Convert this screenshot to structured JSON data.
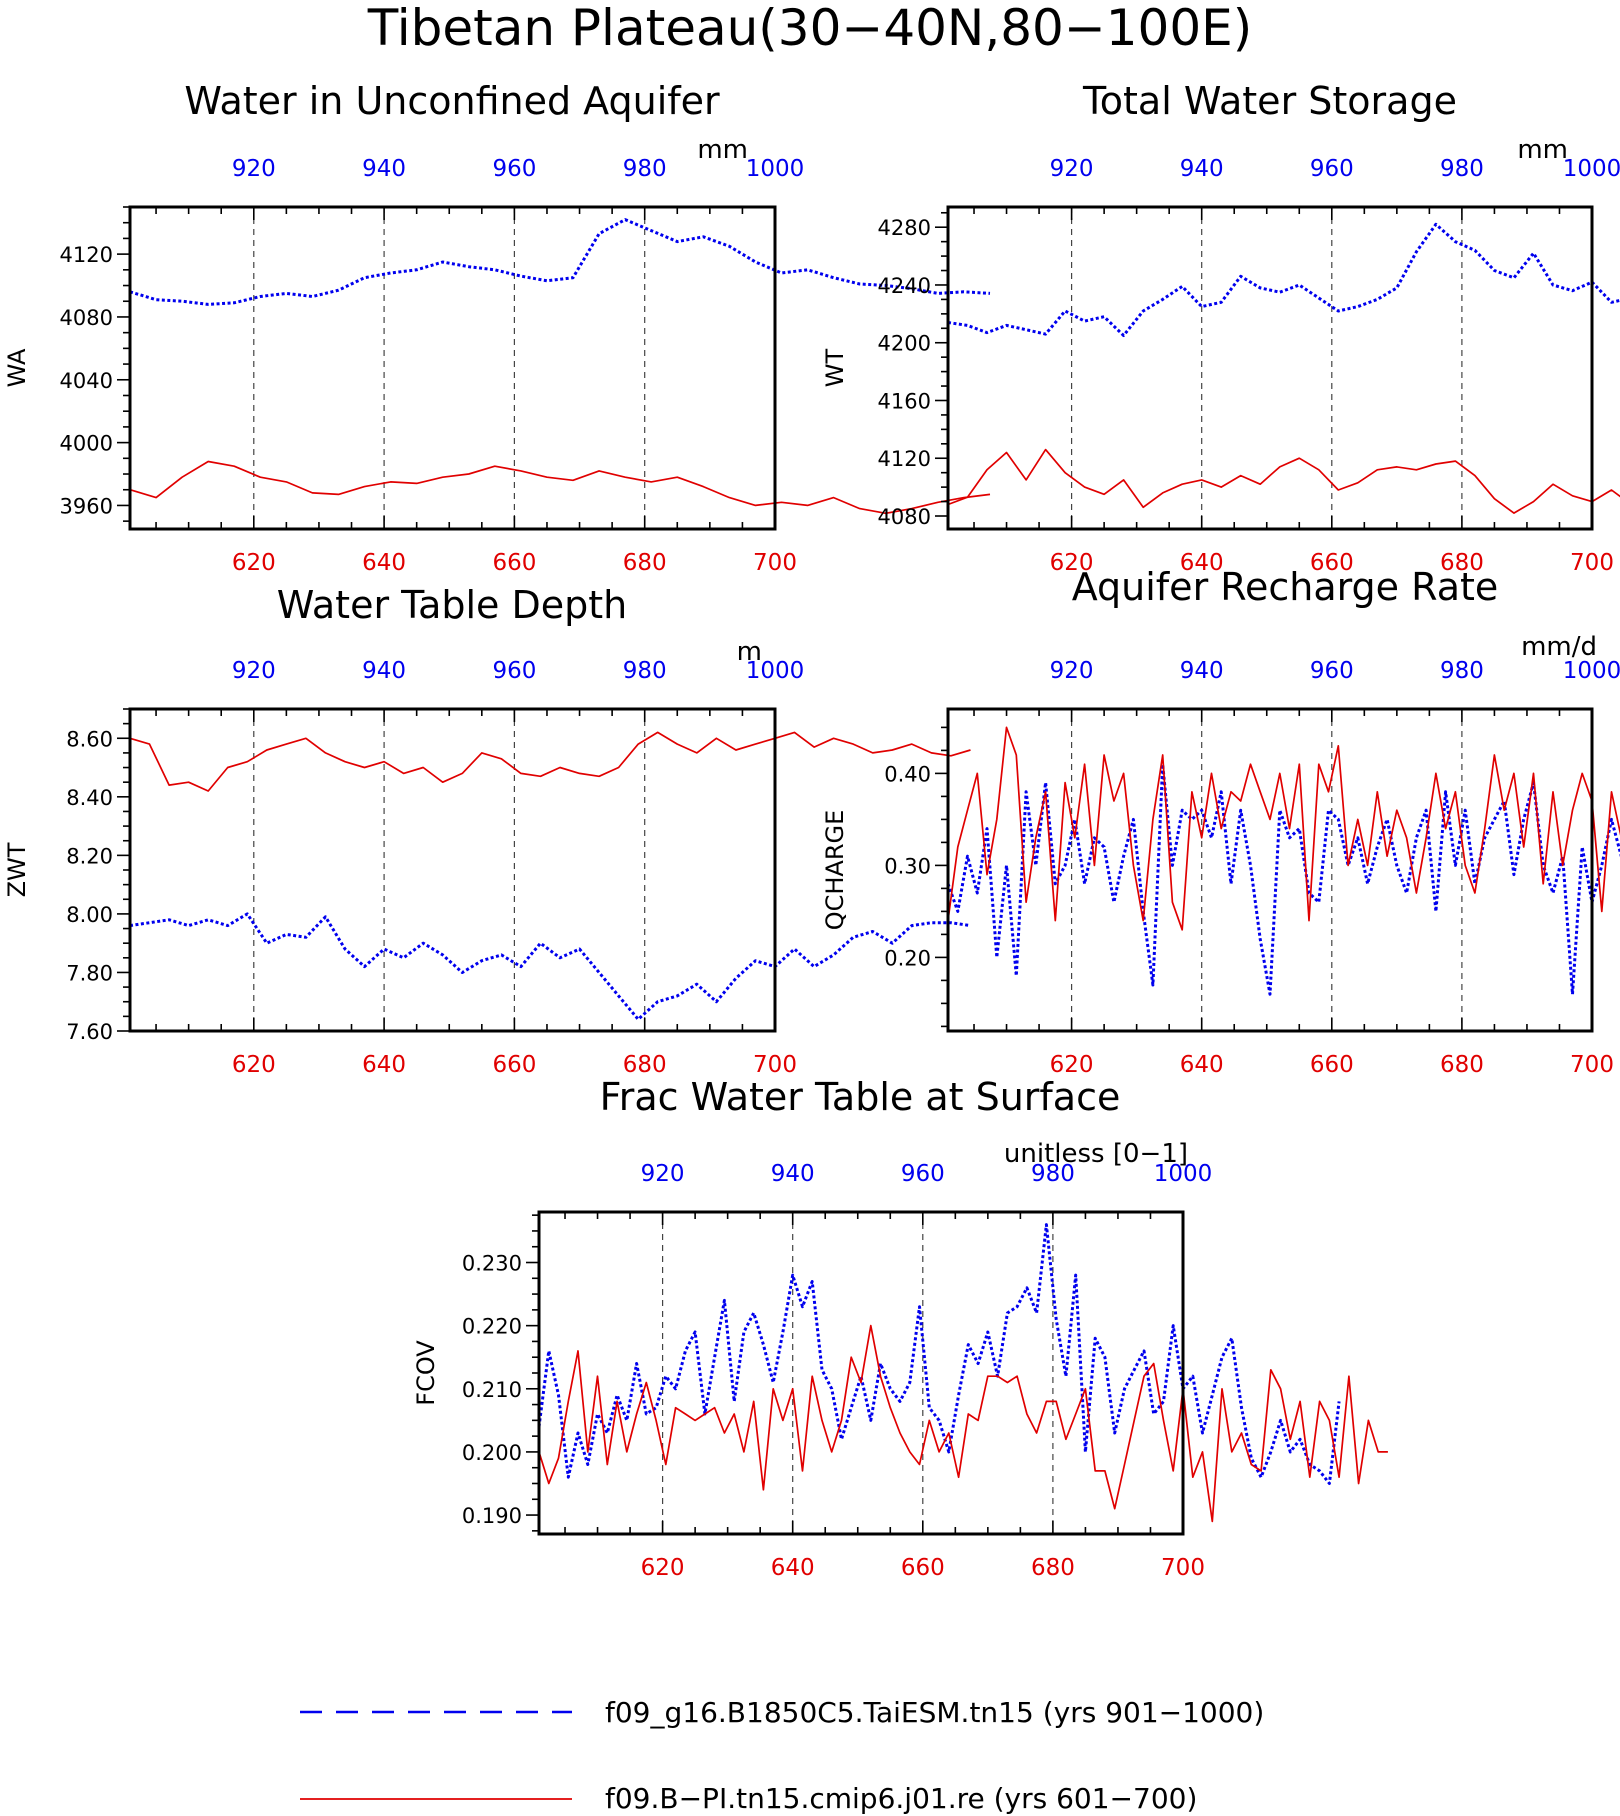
{
  "figure": {
    "title": "Tibetan Plateau(30−40N,80−100E)",
    "colors": {
      "series_a": "#0000ee",
      "series_b": "#e00000"
    },
    "legend": [
      {
        "name": "f09_g16.B1850C5.TaiESM.tn15 (yrs 901−1000)",
        "style": "dashed",
        "color": "#0000ee"
      },
      {
        "name": "f09.B−PI.tn15.cmip6.j01.re (yrs 601−700)",
        "style": "solid",
        "color": "#e00000"
      }
    ]
  },
  "chart_data": [
    {
      "type": "line",
      "title": "Water in Unconfined Aquifer",
      "units": "mm",
      "ylabel": "WA",
      "ylim": [
        3945,
        4150
      ],
      "yticks": [
        3960,
        4000,
        4040,
        4080,
        4120
      ],
      "ytick_labels": [
        "3960",
        "4000",
        "4040",
        "4080",
        "4120"
      ],
      "xlim_bottom": [
        601,
        700
      ],
      "xticks_bottom": [
        620,
        640,
        660,
        680,
        700
      ],
      "xlim_top": [
        901,
        1000
      ],
      "xticks_top": [
        920,
        940,
        960,
        980,
        1000
      ],
      "grid": "vertical dashed",
      "series": [
        {
          "name": "f09_g16.B1850C5.TaiESM.tn15 (yrs 901−1000)",
          "axis": "top",
          "style": "dashed",
          "x_start": 901,
          "x_step": 4,
          "values": [
            4096,
            4091,
            4090,
            4088,
            4089,
            4093,
            4095,
            4093,
            4097,
            4105,
            4108,
            4110,
            4115,
            4112,
            4110,
            4106,
            4103,
            4105,
            4133,
            4142,
            4135,
            4128,
            4131,
            4125,
            4115,
            4108,
            4110,
            4105,
            4101,
            4100,
            4098,
            4095,
            4096,
            4095
          ]
        },
        {
          "name": "f09.B−PI.tn15.cmip6.j01.re (yrs 601−700)",
          "axis": "bottom",
          "style": "solid",
          "x_start": 601,
          "x_step": 4,
          "values": [
            3970,
            3965,
            3978,
            3988,
            3985,
            3978,
            3975,
            3968,
            3967,
            3972,
            3975,
            3974,
            3978,
            3980,
            3985,
            3982,
            3978,
            3976,
            3982,
            3978,
            3975,
            3978,
            3972,
            3965,
            3960,
            3962,
            3960,
            3965,
            3958,
            3955,
            3958,
            3962,
            3965,
            3967
          ]
        }
      ]
    },
    {
      "type": "line",
      "title": "Total Water Storage",
      "units": "mm",
      "ylabel": "WT",
      "ylim": [
        4071,
        4294
      ],
      "yticks": [
        4080,
        4120,
        4160,
        4200,
        4240,
        4280
      ],
      "ytick_labels": [
        "4080",
        "4120",
        "4160",
        "4200",
        "4240",
        "4280"
      ],
      "xlim_bottom": [
        601,
        700
      ],
      "xticks_bottom": [
        620,
        640,
        660,
        680,
        700
      ],
      "xlim_top": [
        901,
        1000
      ],
      "xticks_top": [
        920,
        940,
        960,
        980,
        1000
      ],
      "grid": "vertical dashed",
      "series": [
        {
          "name": "f09_g16.B1850C5.TaiESM.tn15 (yrs 901−1000)",
          "axis": "top",
          "style": "dashed",
          "x_start": 901,
          "x_step": 3,
          "values": [
            4214,
            4212,
            4207,
            4212,
            4209,
            4206,
            4222,
            4215,
            4218,
            4205,
            4222,
            4230,
            4239,
            4225,
            4228,
            4246,
            4238,
            4235,
            4240,
            4231,
            4222,
            4225,
            4230,
            4238,
            4263,
            4282,
            4270,
            4264,
            4250,
            4245,
            4262,
            4240,
            4236,
            4242,
            4228,
            4231,
            4224,
            4212,
            4220,
            4215,
            4219,
            4210,
            4213,
            4208
          ]
        },
        {
          "name": "f09.B−PI.tn15.cmip6.j01.re (yrs 601−700)",
          "axis": "bottom",
          "style": "solid",
          "x_start": 601,
          "x_step": 3,
          "values": [
            4088,
            4093,
            4112,
            4124,
            4105,
            4126,
            4110,
            4100,
            4095,
            4105,
            4086,
            4096,
            4102,
            4105,
            4100,
            4108,
            4102,
            4114,
            4120,
            4112,
            4098,
            4103,
            4112,
            4114,
            4112,
            4116,
            4118,
            4108,
            4092,
            4082,
            4090,
            4102,
            4094,
            4090,
            4098,
            4088,
            4082,
            4092,
            4086,
            4098,
            4090,
            4102,
            4098,
            4093
          ]
        }
      ]
    },
    {
      "type": "line",
      "title": "Water Table Depth",
      "units": "m",
      "ylabel": "ZWT",
      "ylim": [
        7.6,
        8.7
      ],
      "yticks": [
        7.6,
        7.8,
        8.0,
        8.2,
        8.4,
        8.6
      ],
      "ytick_labels": [
        "7.60",
        "7.80",
        "8.00",
        "8.20",
        "8.40",
        "8.60"
      ],
      "xlim_bottom": [
        601,
        700
      ],
      "xticks_bottom": [
        620,
        640,
        660,
        680,
        700
      ],
      "xlim_top": [
        901,
        1000
      ],
      "xticks_top": [
        920,
        940,
        960,
        980,
        1000
      ],
      "grid": "vertical dashed",
      "series": [
        {
          "name": "f09_g16.B1850C5.TaiESM.tn15 (yrs 901−1000)",
          "axis": "top",
          "style": "dashed",
          "x_start": 901,
          "x_step": 3,
          "values": [
            7.96,
            7.97,
            7.98,
            7.96,
            7.98,
            7.96,
            8.0,
            7.9,
            7.93,
            7.92,
            7.99,
            7.88,
            7.82,
            7.88,
            7.85,
            7.9,
            7.86,
            7.8,
            7.84,
            7.86,
            7.82,
            7.9,
            7.85,
            7.88,
            7.8,
            7.72,
            7.64,
            7.7,
            7.72,
            7.76,
            7.7,
            7.78,
            7.84,
            7.82,
            7.88,
            7.82,
            7.86,
            7.92,
            7.94,
            7.9,
            7.96,
            7.97,
            7.97,
            7.96
          ]
        },
        {
          "name": "f09.B−PI.tn15.cmip6.j01.re (yrs 601−700)",
          "axis": "bottom",
          "style": "solid",
          "x_start": 601,
          "x_step": 3,
          "values": [
            8.6,
            8.58,
            8.44,
            8.45,
            8.42,
            8.5,
            8.52,
            8.56,
            8.58,
            8.6,
            8.55,
            8.52,
            8.5,
            8.52,
            8.48,
            8.5,
            8.45,
            8.48,
            8.55,
            8.53,
            8.48,
            8.47,
            8.5,
            8.48,
            8.47,
            8.5,
            8.58,
            8.62,
            8.58,
            8.55,
            8.6,
            8.56,
            8.58,
            8.6,
            8.62,
            8.57,
            8.6,
            8.58,
            8.55,
            8.56,
            8.58,
            8.55,
            8.54,
            8.56
          ]
        }
      ]
    },
    {
      "type": "line",
      "title": "Aquifer Recharge Rate",
      "units": "mm/d",
      "ylabel": "QCHARGE",
      "ylim": [
        0.12,
        0.47
      ],
      "yticks": [
        0.2,
        0.3,
        0.4
      ],
      "ytick_labels": [
        "0.20",
        "0.30",
        "0.40"
      ],
      "xlim_bottom": [
        601,
        700
      ],
      "xticks_bottom": [
        620,
        640,
        660,
        680,
        700
      ],
      "xlim_top": [
        901,
        1000
      ],
      "xticks_top": [
        920,
        940,
        960,
        980,
        1000
      ],
      "grid": "vertical dashed",
      "series": [
        {
          "name": "f09_g16.B1850C5.TaiESM.tn15 (yrs 901−1000)",
          "axis": "top",
          "style": "dashed",
          "x_start": 901,
          "x_step": 1.5,
          "values": [
            0.28,
            0.25,
            0.31,
            0.27,
            0.34,
            0.2,
            0.3,
            0.18,
            0.38,
            0.3,
            0.39,
            0.28,
            0.3,
            0.35,
            0.28,
            0.33,
            0.32,
            0.26,
            0.31,
            0.35,
            0.25,
            0.17,
            0.41,
            0.3,
            0.36,
            0.35,
            0.36,
            0.33,
            0.38,
            0.28,
            0.36,
            0.3,
            0.22,
            0.16,
            0.36,
            0.33,
            0.34,
            0.27,
            0.26,
            0.36,
            0.35,
            0.3,
            0.33,
            0.28,
            0.32,
            0.35,
            0.3,
            0.27,
            0.33,
            0.36,
            0.25,
            0.38,
            0.3,
            0.36,
            0.28,
            0.33,
            0.35,
            0.37,
            0.29,
            0.35,
            0.39,
            0.3,
            0.27,
            0.31,
            0.16,
            0.32,
            0.26,
            0.3,
            0.35,
            0.31,
            0.34,
            0.37,
            0.28,
            0.36,
            0.22,
            0.19,
            0.3,
            0.33,
            0.26,
            0.36,
            0.3,
            0.13,
            0.3,
            0.27,
            0.31,
            0.24,
            0.19,
            0.28,
            0.32,
            0.16,
            0.33,
            0.27,
            0.34,
            0.26
          ]
        },
        {
          "name": "f09.B−PI.tn15.cmip6.j01.re (yrs 601−700)",
          "axis": "bottom",
          "style": "solid",
          "x_start": 601,
          "x_step": 1.5,
          "values": [
            0.24,
            0.32,
            0.36,
            0.4,
            0.29,
            0.35,
            0.45,
            0.42,
            0.26,
            0.33,
            0.38,
            0.24,
            0.39,
            0.33,
            0.41,
            0.3,
            0.42,
            0.37,
            0.4,
            0.3,
            0.24,
            0.35,
            0.42,
            0.26,
            0.23,
            0.38,
            0.33,
            0.4,
            0.34,
            0.38,
            0.37,
            0.41,
            0.38,
            0.35,
            0.4,
            0.34,
            0.41,
            0.24,
            0.41,
            0.38,
            0.43,
            0.3,
            0.35,
            0.3,
            0.38,
            0.31,
            0.36,
            0.33,
            0.27,
            0.33,
            0.4,
            0.34,
            0.38,
            0.3,
            0.27,
            0.34,
            0.42,
            0.36,
            0.4,
            0.32,
            0.4,
            0.28,
            0.38,
            0.3,
            0.36,
            0.4,
            0.37,
            0.25,
            0.38,
            0.33,
            0.29,
            0.42,
            0.31,
            0.45,
            0.33,
            0.37,
            0.3,
            0.4,
            0.34,
            0.38,
            0.31,
            0.37,
            0.3,
            0.4,
            0.35,
            0.39,
            0.32,
            0.4,
            0.3,
            0.38,
            0.31,
            0.36,
            0.3,
            0.34
          ]
        }
      ]
    },
    {
      "type": "line",
      "title": "Frac Water Table at Surface",
      "units": "unitless [0−1]",
      "ylabel": "FCOV",
      "ylim": [
        0.187,
        0.238
      ],
      "yticks": [
        0.19,
        0.2,
        0.21,
        0.22,
        0.23
      ],
      "ytick_labels": [
        "0.190",
        "0.200",
        "0.210",
        "0.220",
        "0.230"
      ],
      "xlim_bottom": [
        601,
        700
      ],
      "xticks_bottom": [
        620,
        640,
        660,
        680,
        700
      ],
      "xlim_top": [
        901,
        1000
      ],
      "xticks_top": [
        920,
        940,
        960,
        980,
        1000
      ],
      "grid": "vertical dashed",
      "series": [
        {
          "name": "f09_g16.B1850C5.TaiESM.tn15 (yrs 901−1000)",
          "axis": "top",
          "style": "dashed",
          "x_start": 901,
          "x_step": 1.5,
          "values": [
            0.204,
            0.216,
            0.209,
            0.196,
            0.203,
            0.198,
            0.206,
            0.203,
            0.209,
            0.205,
            0.214,
            0.206,
            0.207,
            0.212,
            0.21,
            0.216,
            0.219,
            0.206,
            0.215,
            0.224,
            0.208,
            0.219,
            0.222,
            0.217,
            0.211,
            0.219,
            0.228,
            0.223,
            0.227,
            0.213,
            0.21,
            0.202,
            0.207,
            0.212,
            0.205,
            0.214,
            0.21,
            0.208,
            0.211,
            0.223,
            0.207,
            0.205,
            0.2,
            0.209,
            0.217,
            0.214,
            0.219,
            0.212,
            0.222,
            0.223,
            0.226,
            0.222,
            0.236,
            0.221,
            0.212,
            0.228,
            0.2,
            0.218,
            0.215,
            0.203,
            0.21,
            0.213,
            0.216,
            0.206,
            0.208,
            0.22,
            0.21,
            0.212,
            0.203,
            0.209,
            0.215,
            0.218,
            0.207,
            0.199,
            0.196,
            0.2,
            0.205,
            0.2,
            0.202,
            0.198,
            0.197,
            0.195,
            0.208
          ]
        },
        {
          "name": "f09.B−PI.tn15.cmip6.j01.re (yrs 601−700)",
          "axis": "bottom",
          "style": "solid",
          "x_start": 601,
          "x_step": 1.5,
          "values": [
            0.2,
            0.195,
            0.199,
            0.208,
            0.216,
            0.2,
            0.212,
            0.198,
            0.208,
            0.2,
            0.206,
            0.211,
            0.205,
            0.198,
            0.207,
            0.206,
            0.205,
            0.206,
            0.207,
            0.203,
            0.206,
            0.2,
            0.208,
            0.194,
            0.21,
            0.205,
            0.21,
            0.197,
            0.212,
            0.205,
            0.2,
            0.205,
            0.215,
            0.211,
            0.22,
            0.212,
            0.207,
            0.203,
            0.2,
            0.198,
            0.205,
            0.2,
            0.203,
            0.196,
            0.206,
            0.205,
            0.212,
            0.212,
            0.211,
            0.212,
            0.206,
            0.203,
            0.208,
            0.208,
            0.202,
            0.206,
            0.21,
            0.197,
            0.197,
            0.191,
            0.198,
            0.205,
            0.212,
            0.214,
            0.205,
            0.197,
            0.21,
            0.196,
            0.2,
            0.189,
            0.21,
            0.2,
            0.203,
            0.198,
            0.197,
            0.213,
            0.21,
            0.202,
            0.208,
            0.196,
            0.208,
            0.205,
            0.196,
            0.212,
            0.195,
            0.205,
            0.2,
            0.2
          ]
        }
      ]
    }
  ]
}
